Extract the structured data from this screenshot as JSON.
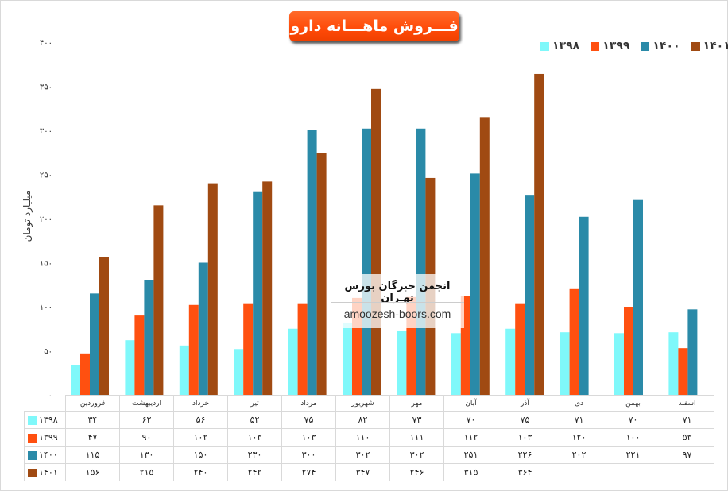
{
  "title": "فـــروش ماهـــانه دارو",
  "watermark": {
    "line1": "انجمن خبرگان بورس تهـران",
    "line2": "amoozesh-boors.com"
  },
  "colors": {
    "1398": "#7ff8fa",
    "1399": "#ff5010",
    "1400": "#2a8aa8",
    "1401": "#a04a12"
  },
  "chart_data": {
    "type": "bar",
    "title": "فـــروش ماهـــانه دارو",
    "ylabel": "میلیارد تومان",
    "xlabel": "",
    "ylim": [
      0,
      400
    ],
    "y_ticks": [
      "۰",
      "۵۰",
      "۱۰۰",
      "۱۵۰",
      "۲۰۰",
      "۲۵۰",
      "۳۰۰",
      "۳۵۰",
      "۴۰۰"
    ],
    "legend_position": "top-right",
    "categories": [
      "فروردین",
      "اردیبهشت",
      "خرداد",
      "تیر",
      "مرداد",
      "شهریور",
      "مهر",
      "آبان",
      "آذر",
      "دی",
      "بهمن",
      "اسفند"
    ],
    "series": [
      {
        "name": "۱۳۹۸",
        "values": [
          34,
          62,
          56,
          52,
          75,
          82,
          73,
          70,
          75,
          71,
          70,
          71
        ]
      },
      {
        "name": "۱۳۹۹",
        "values": [
          47,
          90,
          102,
          103,
          103,
          110,
          111,
          112,
          103,
          120,
          100,
          53
        ]
      },
      {
        "name": "۱۴۰۰",
        "values": [
          115,
          130,
          150,
          230,
          300,
          302,
          302,
          251,
          226,
          202,
          221,
          97
        ]
      },
      {
        "name": "۱۴۰۱",
        "values": [
          156,
          215,
          240,
          242,
          274,
          347,
          246,
          315,
          364,
          null,
          null,
          null
        ]
      }
    ]
  }
}
